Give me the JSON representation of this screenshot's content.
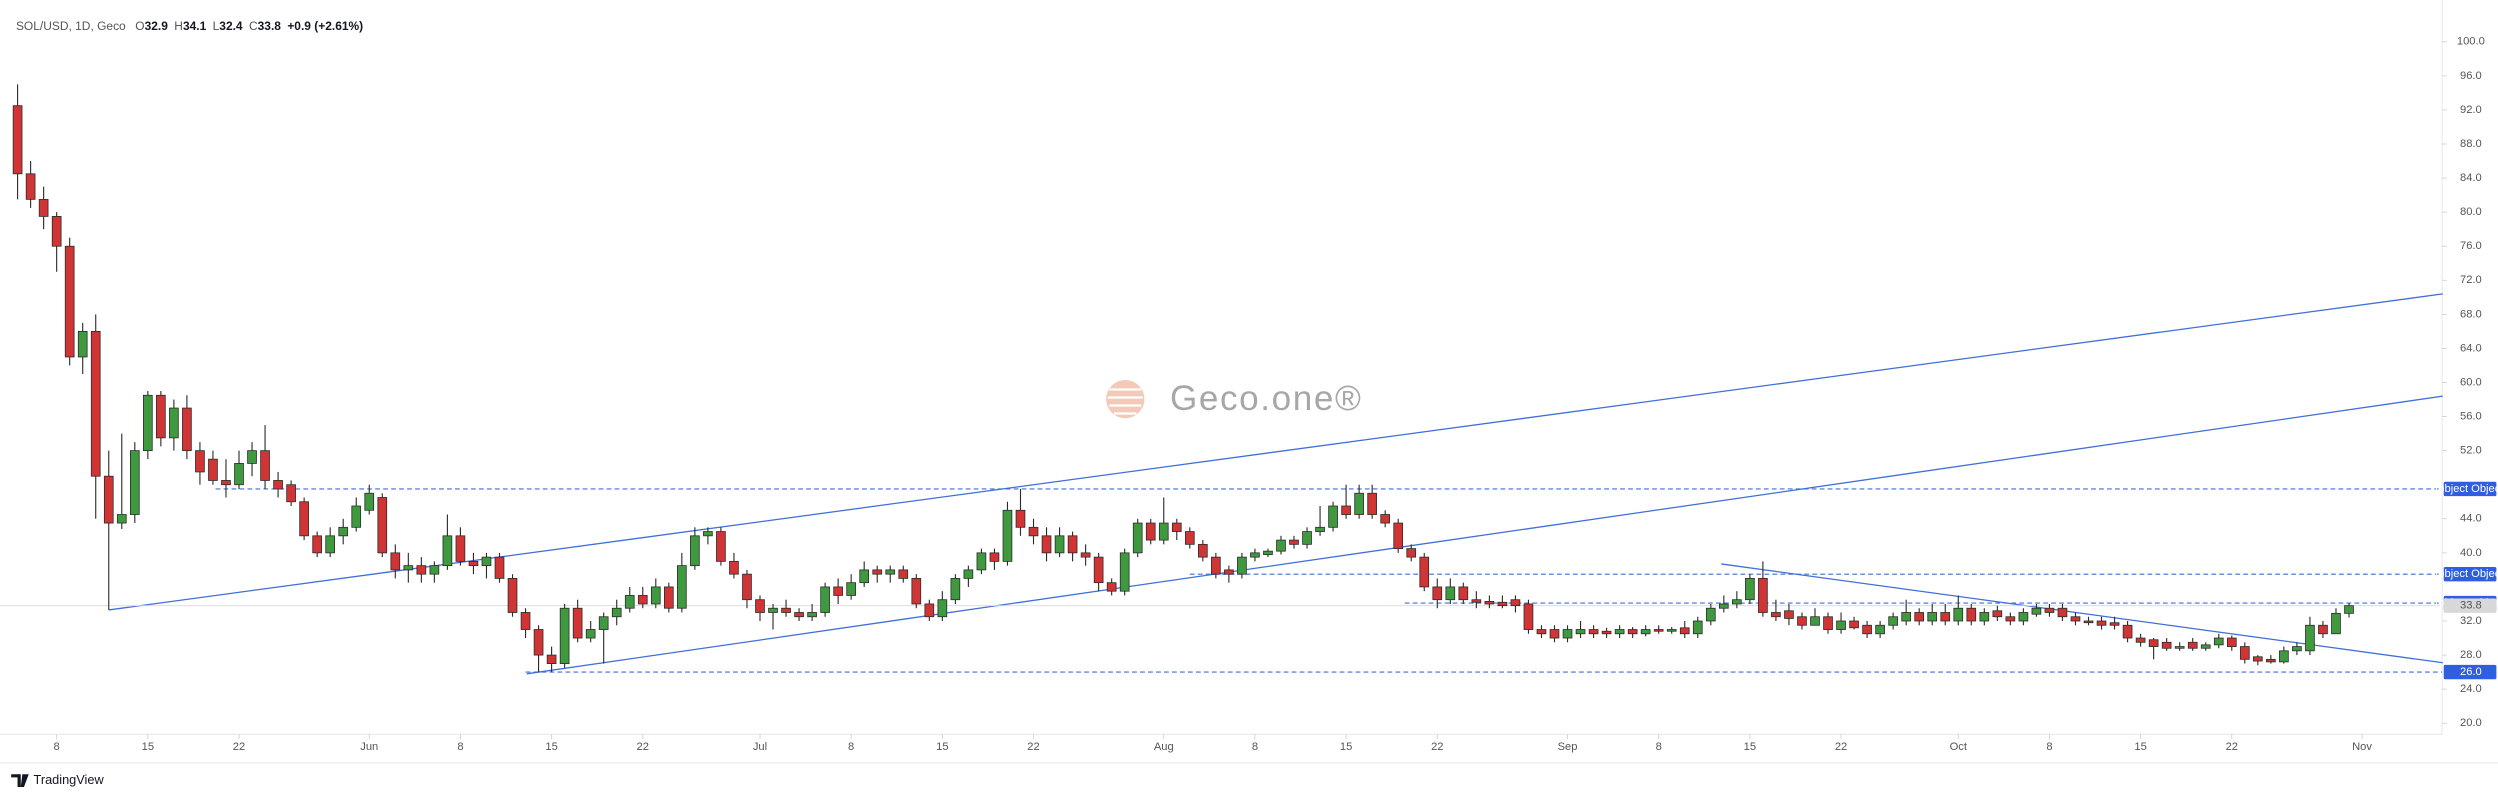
{
  "chart_data": {
    "type": "candlestick",
    "title": "SOL/USD, 1D, Geco",
    "ohlc_prefixes": [
      "O",
      "H",
      "L",
      "C"
    ],
    "change": "+0.9 (+2.61%)",
    "watermark": "Geco.one®",
    "footer": "TradingView",
    "colors": {
      "up": "#3f9a3f",
      "down": "#d13434",
      "line": "#3f6fd8"
    },
    "open": [
      92.5,
      84.5,
      81.5,
      79.5,
      76,
      63,
      66,
      49,
      43.5,
      44.5,
      52,
      58.5,
      53.5,
      57,
      52,
      51,
      48.5,
      48,
      50.5,
      52,
      48.5,
      48,
      46,
      42,
      40,
      42,
      43,
      45,
      46.5,
      40,
      38,
      38.5,
      37.5,
      38.5,
      42,
      39,
      38.5,
      39.5,
      37,
      33,
      31,
      28,
      27,
      33.5,
      30,
      31,
      32.5,
      33.5,
      35,
      34,
      36,
      33.5,
      38.5,
      42,
      42.5,
      39,
      37.5,
      34.5,
      33,
      33.5,
      33,
      32.5,
      33,
      36,
      35,
      36.5,
      38,
      37.5,
      38,
      37,
      34,
      32.5,
      34.5,
      37,
      38,
      40,
      39,
      45,
      43,
      42,
      40,
      42,
      40,
      39.5,
      36.5,
      35.5,
      40,
      43.5,
      41.5,
      43.5,
      42.5,
      41,
      39.5,
      38,
      37.5,
      39.5,
      39.8,
      40.2,
      41.5,
      41,
      42.5,
      43,
      45.5,
      44.5,
      47,
      44.5,
      43.5,
      40.5,
      39.5,
      36,
      34.5,
      36,
      34.5,
      34.3,
      34.2,
      34.5,
      34,
      31,
      31,
      30,
      30.5,
      31,
      30.8,
      30.5,
      31,
      30.5,
      31,
      30.8,
      31.2,
      30.5,
      32,
      33.5,
      34,
      34.5,
      37,
      33,
      33.2,
      32.5,
      31.5,
      32.5,
      31,
      32,
      31.5,
      30.5,
      31.5,
      32,
      33,
      32,
      33,
      32,
      33.5,
      32,
      33.2,
      32.5,
      32,
      32.8,
      33.5,
      33.5,
      32.5,
      32,
      32,
      31.8,
      31.5,
      30,
      29.8,
      29.5,
      28.8,
      29.5,
      28.8,
      29.2,
      30,
      29,
      27.8,
      27.5,
      27.2,
      28.5,
      28.5,
      31.5,
      30.5,
      32.9
    ],
    "high": [
      95,
      86,
      83,
      80,
      77,
      67,
      68,
      52,
      54,
      53,
      59,
      59,
      58,
      58.5,
      53,
      52,
      51,
      52,
      53,
      55,
      49.5,
      48.5,
      46.5,
      42.5,
      43,
      44,
      46.5,
      48,
      47,
      41,
      40,
      39.5,
      39,
      44.5,
      43,
      40,
      40,
      40,
      37.5,
      33.5,
      31.5,
      29,
      34,
      34.5,
      32,
      33,
      34.5,
      36,
      36,
      37,
      36.5,
      40,
      43,
      43,
      43,
      40,
      38,
      35,
      34,
      34.5,
      33.5,
      34,
      36.5,
      37,
      37.5,
      39,
      38.5,
      38.5,
      38.5,
      37.5,
      34.5,
      35.5,
      37.5,
      38.5,
      40.5,
      40.5,
      46,
      47.5,
      44,
      43,
      43,
      42.5,
      41,
      40,
      37,
      40.5,
      44,
      44,
      46.5,
      44,
      43,
      41.5,
      40,
      38.5,
      40,
      40.5,
      40.5,
      42,
      42,
      43,
      45.5,
      46,
      48,
      48,
      48,
      45,
      44,
      41,
      40,
      37,
      37,
      36.5,
      35.5,
      35,
      35,
      35,
      34.5,
      31.5,
      31.5,
      31.5,
      32,
      31.5,
      31.2,
      31.5,
      31.3,
      31.5,
      31.5,
      31.3,
      32,
      32.5,
      34,
      35,
      35.5,
      37.5,
      39,
      34.5,
      34,
      33,
      33.5,
      33,
      33,
      32.5,
      32,
      32,
      33,
      34.5,
      33.5,
      34,
      34,
      35,
      34,
      33.5,
      33.8,
      33,
      33.5,
      34,
      34,
      34,
      33,
      32.5,
      32.5,
      32.5,
      32,
      30.5,
      30,
      30,
      29.5,
      30,
      29.5,
      30.5,
      30.3,
      29.5,
      28,
      28,
      29,
      29.5,
      32.5,
      32,
      33.5,
      34.1
    ],
    "low": [
      81.5,
      80.5,
      78,
      73,
      62,
      61,
      44,
      33.3,
      42.8,
      43.5,
      51,
      52.5,
      52,
      51,
      48,
      48,
      46.5,
      47.5,
      49,
      47.5,
      46.5,
      45.5,
      41.5,
      39.5,
      39.5,
      41,
      42.5,
      44.5,
      39.5,
      37,
      36.5,
      36.5,
      36.5,
      38,
      38.5,
      37.5,
      37,
      36.5,
      32.5,
      30,
      26,
      26,
      26.5,
      29.5,
      29.5,
      27,
      31.5,
      33,
      33.5,
      33.5,
      33,
      33,
      38,
      41,
      38.5,
      37,
      33.5,
      32,
      31,
      32.5,
      32,
      32,
      32.5,
      34,
      34.5,
      36,
      36.5,
      36.5,
      36.5,
      33.5,
      32,
      32,
      34,
      36,
      37.5,
      38,
      38.5,
      42,
      41,
      39,
      39.5,
      39,
      38.5,
      35.5,
      35,
      35,
      39.5,
      41,
      41,
      41.5,
      40.5,
      39,
      37,
      36.5,
      37,
      39,
      39.5,
      39.8,
      40.5,
      40.5,
      42,
      42.5,
      44,
      44,
      44,
      43,
      40,
      39,
      35.5,
      33.5,
      34,
      34,
      33.5,
      33.5,
      33.5,
      33,
      30.5,
      30,
      29.5,
      29.5,
      30,
      30,
      30,
      30,
      30,
      30.2,
      30.5,
      30.5,
      30,
      30,
      31.5,
      33,
      33.5,
      34,
      32.5,
      32,
      31.5,
      31,
      31.5,
      30.5,
      30.5,
      31,
      30,
      30,
      31,
      31.5,
      31.5,
      31.5,
      31.5,
      31.5,
      31.5,
      31.5,
      32,
      31.5,
      31.5,
      32.5,
      32.5,
      32,
      31.5,
      31.5,
      31,
      31,
      29.5,
      29,
      27.5,
      28.5,
      28.5,
      28.5,
      28.5,
      28.8,
      28.5,
      27,
      26.8,
      27,
      27,
      28,
      28,
      30,
      30.5,
      32.4
    ],
    "close": [
      84.5,
      81.5,
      79.5,
      76,
      63,
      66,
      49,
      43.5,
      44.5,
      52,
      58.5,
      53.5,
      57,
      52,
      49.5,
      48.5,
      48,
      50.5,
      52,
      48.5,
      47.5,
      46,
      42,
      40,
      42,
      43,
      45.5,
      47,
      40,
      38,
      38.5,
      37.5,
      38.5,
      42,
      39,
      38.5,
      39.5,
      37,
      33,
      31,
      28,
      27,
      33.5,
      30,
      31,
      32.5,
      33.5,
      35,
      34,
      36,
      33.5,
      38.5,
      42,
      42.5,
      39,
      37.5,
      34.5,
      33,
      33.5,
      33,
      32.5,
      33,
      36,
      35,
      36.5,
      38,
      37.5,
      38,
      37,
      34,
      32.5,
      34.5,
      37,
      38,
      40,
      39,
      45,
      43,
      42,
      40,
      42,
      40,
      39.5,
      36.5,
      35.5,
      40,
      43.5,
      41.5,
      43.5,
      42.5,
      41,
      39.5,
      37.5,
      37.5,
      39.5,
      40,
      40.2,
      41.5,
      41,
      42.5,
      43,
      45.5,
      44.5,
      47,
      44.5,
      43.5,
      40.5,
      39.5,
      36,
      34.5,
      36,
      34.5,
      34.2,
      34,
      33.8,
      33.8,
      31,
      30.5,
      30,
      31,
      31,
      30.5,
      30.5,
      31,
      30.5,
      31,
      30.8,
      31,
      30.5,
      32,
      33.5,
      34,
      34.5,
      37,
      33,
      32.5,
      32.3,
      31.5,
      32.5,
      31,
      32,
      31.2,
      30.5,
      31.5,
      32.5,
      33,
      32,
      33,
      32,
      33.5,
      32,
      33,
      32.5,
      32,
      33,
      33.5,
      33,
      32.5,
      32,
      31.8,
      31.5,
      31.5,
      30,
      29.5,
      29,
      28.8,
      29,
      28.8,
      29.2,
      30,
      29,
      27.5,
      27.3,
      27.2,
      28.5,
      29,
      31.5,
      30.5,
      32.9,
      33.8
    ],
    "xlim": [
      -1.35,
      186.15
    ],
    "xticks": [
      {
        "value": 3,
        "label": "8"
      },
      {
        "value": 10,
        "label": "15"
      },
      {
        "value": 17,
        "label": "22"
      },
      {
        "value": 27,
        "label": "Jun"
      },
      {
        "value": 34,
        "label": "8"
      },
      {
        "value": 41,
        "label": "15"
      },
      {
        "value": 48,
        "label": "22"
      },
      {
        "value": 57,
        "label": "Jul"
      },
      {
        "value": 64,
        "label": "8"
      },
      {
        "value": 71,
        "label": "15"
      },
      {
        "value": 78,
        "label": "22"
      },
      {
        "value": 88,
        "label": "Aug"
      },
      {
        "value": 95,
        "label": "8"
      },
      {
        "value": 102,
        "label": "15"
      },
      {
        "value": 109,
        "label": "22"
      },
      {
        "value": 119,
        "label": "Sep"
      },
      {
        "value": 126,
        "label": "8"
      },
      {
        "value": 133,
        "label": "15"
      },
      {
        "value": 140,
        "label": "22"
      },
      {
        "value": 149,
        "label": "Oct"
      },
      {
        "value": 156,
        "label": "8"
      },
      {
        "value": 163,
        "label": "15"
      },
      {
        "value": 170,
        "label": "22"
      },
      {
        "value": 180,
        "label": "Nov"
      }
    ],
    "ylim": [
      18.7,
      104.9
    ],
    "yticks": [
      {
        "value": 100,
        "label": "100.0"
      },
      {
        "value": 96,
        "label": "96.0"
      },
      {
        "value": 92,
        "label": "92.0"
      },
      {
        "value": 88,
        "label": "88.0"
      },
      {
        "value": 84,
        "label": "84.0"
      },
      {
        "value": 80,
        "label": "80.0"
      },
      {
        "value": 76,
        "label": "76.0"
      },
      {
        "value": 72,
        "label": "72.0"
      },
      {
        "value": 68,
        "label": "68.0"
      },
      {
        "value": 64,
        "label": "64.0"
      },
      {
        "value": 60,
        "label": "60.0"
      },
      {
        "value": 56,
        "label": "56.0"
      },
      {
        "value": 52,
        "label": "52.0"
      },
      {
        "value": 44,
        "label": "44.0"
      },
      {
        "value": 40,
        "label": "40.0"
      },
      {
        "value": 32,
        "label": "32.0"
      },
      {
        "value": 28,
        "label": "28.0"
      },
      {
        "value": 24,
        "label": "24.0"
      },
      {
        "value": 20,
        "label": "20.0"
      }
    ],
    "levels": [
      {
        "value": 47.5,
        "start": 15.2
      },
      {
        "value": 37.5,
        "start": 90
      },
      {
        "value": 34.1,
        "start": 106.5
      },
      {
        "value": 26,
        "label": "26.0",
        "start": 39
      }
    ],
    "trendlines": [
      {
        "x": [
          7,
          186.2
        ],
        "y": [
          33.3,
          70.4
        ]
      },
      {
        "x": [
          39.1,
          186.2
        ],
        "y": [
          25.8,
          58.4
        ]
      },
      {
        "x": [
          130.8,
          186.2
        ],
        "y": [
          38.7,
          27.1
        ]
      }
    ]
  }
}
